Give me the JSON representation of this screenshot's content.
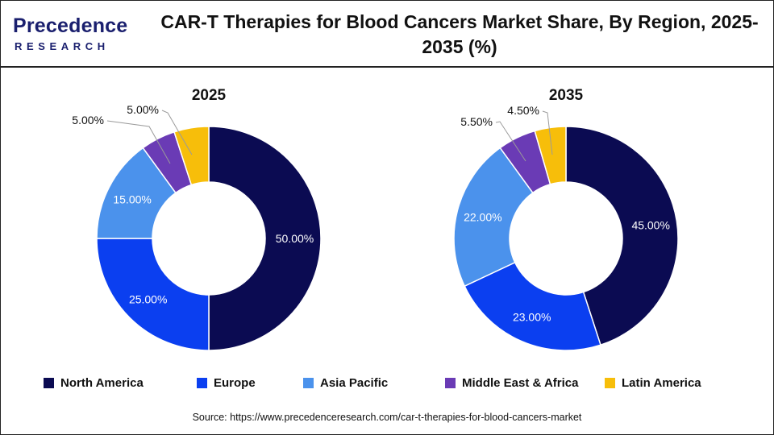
{
  "logo": {
    "main": "Precedence",
    "sub": "RESEARCH"
  },
  "title": "CAR-T Therapies for Blood Cancers Market Share, By Region, 2025-2035 (%)",
  "source": "Source: https://www.precedenceresearch.com/car-t-therapies-for-blood-cancers-market",
  "colors": {
    "North America": "#0b0b52",
    "Europe": "#0b3ff0",
    "Asia Pacific": "#4b92ec",
    "Middle East & Africa": "#6a3bb5",
    "Latin America": "#f7be0a"
  },
  "chart_data": [
    {
      "type": "pie",
      "title": "2025",
      "categories": [
        "North America",
        "Europe",
        "Asia Pacific",
        "Middle East & Africa",
        "Latin America"
      ],
      "values": [
        50.0,
        25.0,
        15.0,
        5.0,
        5.0
      ],
      "labels": [
        "50.00%",
        "25.00%",
        "15.00%",
        "5.00%",
        "5.00%"
      ],
      "legend": "bottom"
    },
    {
      "type": "pie",
      "title": "2035",
      "categories": [
        "North America",
        "Europe",
        "Asia Pacific",
        "Middle East & Africa",
        "Latin America"
      ],
      "values": [
        45.0,
        23.0,
        22.0,
        5.5,
        4.5
      ],
      "labels": [
        "45.00%",
        "23.00%",
        "22.00%",
        "5.50%",
        "4.50%"
      ],
      "legend": "bottom"
    }
  ]
}
